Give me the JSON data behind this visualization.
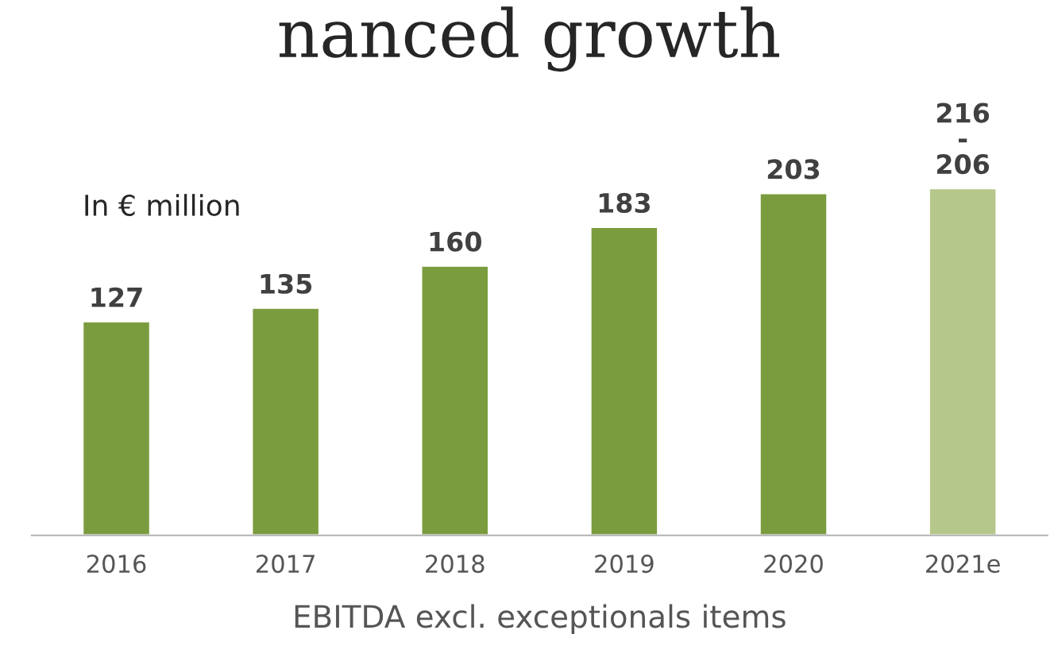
{
  "chart_data": {
    "type": "bar",
    "title": "nanced growth",
    "xlabel": "EBITDA excl. exceptionals items",
    "categories": [
      "2016",
      "2017",
      "2018",
      "2019",
      "2020",
      "2021e"
    ],
    "values": [
      127,
      135,
      160,
      183,
      203,
      206
    ],
    "colors": [
      "#7a9c3e",
      "#7a9c3e",
      "#7a9c3e",
      "#7a9c3e",
      "#7a9c3e",
      "#b5c78a"
    ],
    "value_labels": [
      "127",
      "135",
      "160",
      "183",
      "203",
      "216\n-\n206"
    ],
    "annotations": [
      "In € million"
    ],
    "tick_labels": "x",
    "grid": false,
    "legend": false
  }
}
